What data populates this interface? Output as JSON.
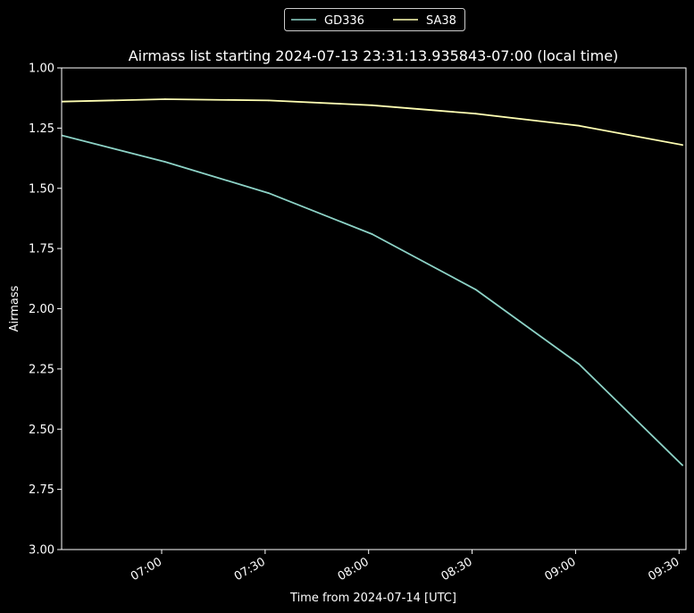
{
  "chart_data": {
    "type": "line",
    "title": "Airmass list starting 2024-07-13 23:31:13.935843-07:00 (local time)",
    "xlabel": "Time from 2024-07-14 [UTC]",
    "ylabel": "Airmass",
    "y_inverted": true,
    "ylim": [
      3.0,
      1.0
    ],
    "yticks": [
      "1.00",
      "1.25",
      "1.50",
      "1.75",
      "2.00",
      "2.25",
      "2.50",
      "2.75",
      "3.00"
    ],
    "xlim": [
      "06:31",
      "09:32"
    ],
    "xticks": [
      "07:00",
      "07:30",
      "08:00",
      "08:30",
      "09:00",
      "09:30"
    ],
    "x": [
      "06:31",
      "07:01",
      "07:31",
      "08:01",
      "08:31",
      "09:01",
      "09:31"
    ],
    "series": [
      {
        "name": "GD336",
        "color": "#8dd3c7",
        "values": [
          1.28,
          1.39,
          1.52,
          1.69,
          1.92,
          2.23,
          2.65
        ]
      },
      {
        "name": "SA38",
        "color": "#ffffb3",
        "values": [
          1.14,
          1.13,
          1.135,
          1.155,
          1.19,
          1.24,
          1.32
        ]
      }
    ],
    "legend_position": "top-center, above plot",
    "grid": false,
    "background": "#000000",
    "foreground": "#ffffff"
  }
}
